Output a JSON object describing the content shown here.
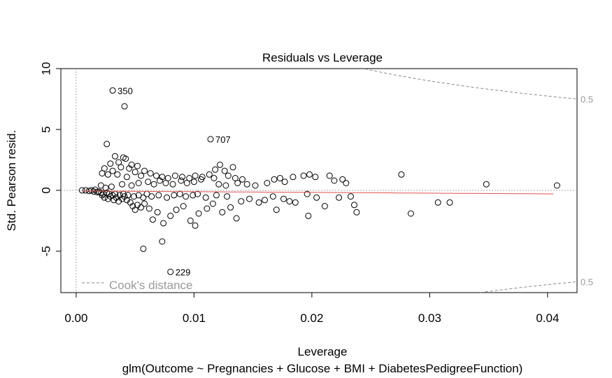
{
  "chart_data": {
    "type": "scatter",
    "title": "Residuals vs Leverage",
    "xlabel": "Leverage",
    "subtitle": "glm(Outcome ~ Pregnancies + Glucose + BMI + DiabetesPedigreeFunction)",
    "ylabel": "Std. Pearson resid.",
    "xlim": [
      -0.0013,
      0.0425
    ],
    "ylim": [
      -8.4,
      10.0
    ],
    "x_ticks": [
      0.0,
      0.01,
      0.02,
      0.03,
      0.04
    ],
    "x_tick_labels": [
      "0.00",
      "0.01",
      "0.02",
      "0.03",
      "0.04"
    ],
    "y_ticks": [
      -5,
      0,
      5,
      10
    ],
    "y_tick_labels": [
      "-5",
      "0",
      "5",
      "10"
    ],
    "grid": false,
    "legend": {
      "label": "Cook's distance",
      "position": "bottom-left"
    },
    "cooks_contour_labels": [
      {
        "label": "0.5",
        "side": "upper"
      },
      {
        "label": "0.5",
        "side": "lower"
      }
    ],
    "labeled_points": [
      {
        "label": "350",
        "x": 0.0031,
        "y": 8.2
      },
      {
        "label": "707",
        "x": 0.0114,
        "y": 4.2
      },
      {
        "label": "229",
        "x": 0.008,
        "y": -6.7
      }
    ],
    "points": [
      [
        0.0005,
        0.0
      ],
      [
        0.0008,
        0.0
      ],
      [
        0.0011,
        -0.05
      ],
      [
        0.0013,
        0.0
      ],
      [
        0.0015,
        -0.1
      ],
      [
        0.0016,
        0.05
      ],
      [
        0.0018,
        -0.15
      ],
      [
        0.0019,
        -0.1
      ],
      [
        0.0031,
        8.2
      ],
      [
        0.0041,
        6.9
      ],
      [
        0.0114,
        4.2
      ],
      [
        0.008,
        -6.7
      ],
      [
        0.0057,
        -4.8
      ],
      [
        0.0073,
        -4.2
      ],
      [
        0.0026,
        3.8
      ],
      [
        0.0033,
        2.8
      ],
      [
        0.004,
        2.7
      ],
      [
        0.0042,
        2.6
      ],
      [
        0.0036,
        2.3
      ],
      [
        0.0029,
        2.2
      ],
      [
        0.0047,
        2.1
      ],
      [
        0.0052,
        2.0
      ],
      [
        0.0038,
        1.9
      ],
      [
        0.0024,
        1.8
      ],
      [
        0.0045,
        1.8
      ],
      [
        0.0058,
        1.6
      ],
      [
        0.0031,
        1.6
      ],
      [
        0.0022,
        1.4
      ],
      [
        0.005,
        1.5
      ],
      [
        0.0063,
        1.4
      ],
      [
        0.0035,
        1.3
      ],
      [
        0.0027,
        1.3
      ],
      [
        0.0055,
        1.2
      ],
      [
        0.0068,
        1.2
      ],
      [
        0.0043,
        1.1
      ],
      [
        0.0073,
        1.1
      ],
      [
        0.0078,
        1.0
      ],
      [
        0.0084,
        1.2
      ],
      [
        0.009,
        1.1
      ],
      [
        0.0096,
        1.0
      ],
      [
        0.0101,
        1.2
      ],
      [
        0.0107,
        1.1
      ],
      [
        0.0118,
        1.7
      ],
      [
        0.0122,
        2.1
      ],
      [
        0.0126,
        1.6
      ],
      [
        0.0133,
        1.9
      ],
      [
        0.0129,
        1.2
      ],
      [
        0.0135,
        1.0
      ],
      [
        0.0141,
        0.9
      ],
      [
        0.0113,
        1.3
      ],
      [
        0.0117,
        1.0
      ],
      [
        0.0089,
        0.8
      ],
      [
        0.0094,
        0.6
      ],
      [
        0.01,
        0.7
      ],
      [
        0.0106,
        0.9
      ],
      [
        0.0061,
        0.7
      ],
      [
        0.0066,
        0.5
      ],
      [
        0.0071,
        0.8
      ],
      [
        0.0076,
        0.6
      ],
      [
        0.0082,
        0.5
      ],
      [
        0.0053,
        0.6
      ],
      [
        0.0047,
        0.4
      ],
      [
        0.0039,
        0.5
      ],
      [
        0.003,
        0.3
      ],
      [
        0.0025,
        0.2
      ],
      [
        0.0021,
        0.4
      ],
      [
        0.0121,
        0.5
      ],
      [
        0.0127,
        0.4
      ],
      [
        0.0137,
        0.6
      ],
      [
        0.0145,
        0.5
      ],
      [
        0.0152,
        0.4
      ],
      [
        0.0162,
        0.6
      ],
      [
        0.0168,
        0.9
      ],
      [
        0.0173,
        1.0
      ],
      [
        0.0177,
        0.7
      ],
      [
        0.0184,
        1.1
      ],
      [
        0.0193,
        1.2
      ],
      [
        0.0198,
        1.3
      ],
      [
        0.0203,
        1.1
      ],
      [
        0.0215,
        1.2
      ],
      [
        0.0219,
        0.8
      ],
      [
        0.0226,
        0.9
      ],
      [
        0.0229,
        0.6
      ],
      [
        0.0276,
        1.3
      ],
      [
        0.0348,
        0.5
      ],
      [
        0.0408,
        0.4
      ],
      [
        0.0022,
        -0.4
      ],
      [
        0.0024,
        -0.6
      ],
      [
        0.0027,
        -0.7
      ],
      [
        0.0029,
        -0.5
      ],
      [
        0.0032,
        -0.8
      ],
      [
        0.0034,
        -0.6
      ],
      [
        0.0036,
        -0.9
      ],
      [
        0.0039,
        -0.7
      ],
      [
        0.0041,
        -0.5
      ],
      [
        0.0043,
        -0.8
      ],
      [
        0.0046,
        -1.0
      ],
      [
        0.0048,
        -1.3
      ],
      [
        0.005,
        -1.6
      ],
      [
        0.0052,
        -1.2
      ],
      [
        0.0055,
        -1.4
      ],
      [
        0.0058,
        -1.1
      ],
      [
        0.0062,
        -1.5
      ],
      [
        0.0065,
        -2.4
      ],
      [
        0.0069,
        -1.8
      ],
      [
        0.0074,
        -2.7
      ],
      [
        0.008,
        -2.1
      ],
      [
        0.0085,
        -1.6
      ],
      [
        0.0091,
        -1.3
      ],
      [
        0.0097,
        -2.5
      ],
      [
        0.0101,
        -2.9
      ],
      [
        0.0104,
        -1.9
      ],
      [
        0.0111,
        -1.5
      ],
      [
        0.0116,
        -1.1
      ],
      [
        0.0124,
        -1.8
      ],
      [
        0.0131,
        -1.4
      ],
      [
        0.0136,
        -2.3
      ],
      [
        0.014,
        -0.9
      ],
      [
        0.0147,
        -0.7
      ],
      [
        0.0155,
        -1.0
      ],
      [
        0.016,
        -0.8
      ],
      [
        0.0167,
        -0.5
      ],
      [
        0.017,
        -1.6
      ],
      [
        0.0176,
        -0.7
      ],
      [
        0.0181,
        -0.9
      ],
      [
        0.0186,
        -1.0
      ],
      [
        0.0196,
        -0.3
      ],
      [
        0.0197,
        -2.1
      ],
      [
        0.0204,
        -0.6
      ],
      [
        0.0211,
        -1.3
      ],
      [
        0.0223,
        -0.6
      ],
      [
        0.0233,
        -0.5
      ],
      [
        0.0236,
        -1.2
      ],
      [
        0.0238,
        -1.8
      ],
      [
        0.0284,
        -1.9
      ],
      [
        0.0307,
        -1.0
      ],
      [
        0.0317,
        -1.0
      ],
      [
        0.0021,
        -0.2
      ],
      [
        0.0023,
        -0.3
      ],
      [
        0.0026,
        -0.2
      ],
      [
        0.0028,
        -0.3
      ],
      [
        0.0031,
        -0.4
      ],
      [
        0.0033,
        -0.3
      ],
      [
        0.0037,
        -0.4
      ],
      [
        0.004,
        -0.3
      ],
      [
        0.0044,
        -0.4
      ],
      [
        0.0049,
        -0.5
      ],
      [
        0.0053,
        -0.4
      ],
      [
        0.0057,
        -0.6
      ],
      [
        0.006,
        -0.3
      ],
      [
        0.0064,
        -0.5
      ],
      [
        0.007,
        -0.4
      ],
      [
        0.0077,
        -0.6
      ],
      [
        0.0083,
        -0.4
      ],
      [
        0.0088,
        -0.3
      ],
      [
        0.0093,
        -0.5
      ],
      [
        0.0099,
        -0.4
      ],
      [
        0.0103,
        -0.3
      ],
      [
        0.011,
        -0.6
      ],
      [
        0.0119,
        -0.4
      ],
      [
        0.0128,
        -0.5
      ]
    ],
    "reference_lines": {
      "h": 0,
      "v": 0
    }
  }
}
